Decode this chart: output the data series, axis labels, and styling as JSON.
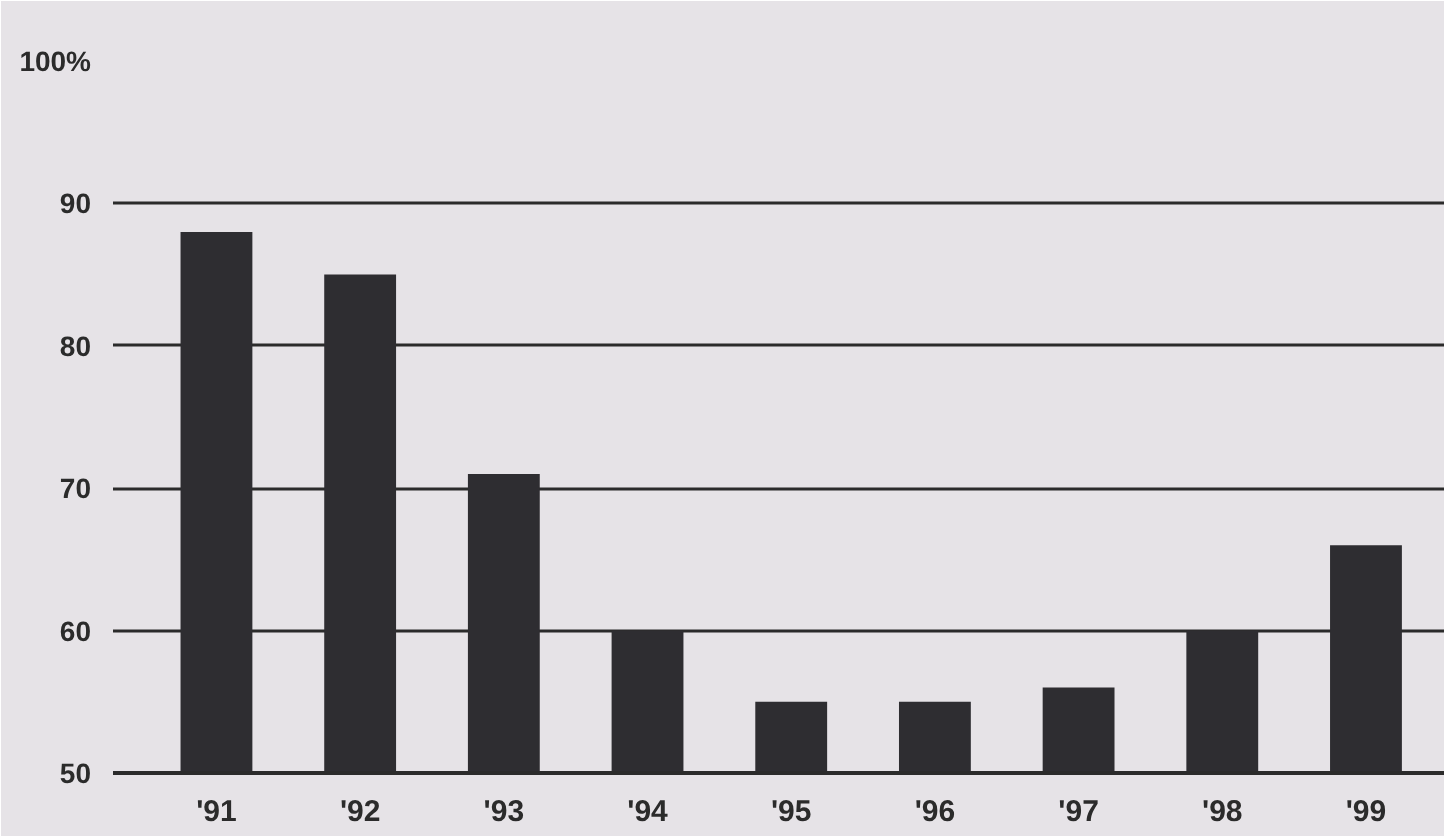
{
  "chart_data": {
    "type": "bar",
    "categories": [
      "'91",
      "'92",
      "'93",
      "'94",
      "'95",
      "'96",
      "'97",
      "'98",
      "'99"
    ],
    "values": [
      88,
      85,
      71,
      60,
      55,
      55,
      56,
      60,
      66
    ],
    "color": "#2e2d31",
    "ylim": [
      50,
      100
    ],
    "yticks": [
      50,
      60,
      70,
      80,
      90,
      {
        "value": 100,
        "label": "100%"
      }
    ],
    "grid": "y"
  }
}
